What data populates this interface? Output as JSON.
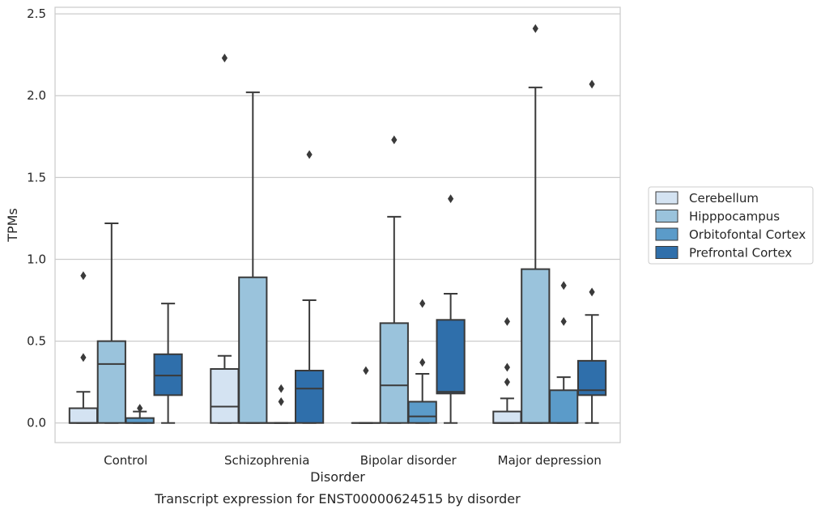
{
  "chart_data": {
    "type": "boxplot",
    "xlabel": "Disorder",
    "ylabel": "TPMs",
    "caption": "Transcript expression for ENST00000624515 by disorder",
    "ylim": [
      -0.12,
      2.54
    ],
    "yticks": [
      0.0,
      0.5,
      1.0,
      1.5,
      2.0,
      2.5
    ],
    "ytick_labels": [
      "0.0",
      "0.5",
      "1.0",
      "1.5",
      "2.0",
      "2.5"
    ],
    "grid": "horizontal",
    "legend_position": "right",
    "categories": [
      "Control",
      "Schizophrenia",
      "Bipolar disorder",
      "Major depression"
    ],
    "series": [
      {
        "name": "Cerebellum",
        "color": "#d4e3f2",
        "boxes": [
          {
            "q1": 0.0,
            "median": 0.0,
            "q3": 0.09,
            "whisker_low": 0.0,
            "whisker_high": 0.19,
            "outliers": [
              0.4,
              0.9
            ]
          },
          {
            "q1": 0.0,
            "median": 0.1,
            "q3": 0.33,
            "whisker_low": 0.0,
            "whisker_high": 0.41,
            "outliers": [
              2.23
            ]
          },
          {
            "q1": 0.0,
            "median": 0.0,
            "q3": 0.0,
            "whisker_low": 0.0,
            "whisker_high": 0.0,
            "outliers": [
              0.32
            ]
          },
          {
            "q1": 0.0,
            "median": 0.0,
            "q3": 0.07,
            "whisker_low": 0.0,
            "whisker_high": 0.15,
            "outliers": [
              0.25,
              0.34,
              0.62
            ]
          }
        ]
      },
      {
        "name": "Hipppocampus",
        "color": "#9ac3dc",
        "boxes": [
          {
            "q1": 0.0,
            "median": 0.36,
            "q3": 0.5,
            "whisker_low": 0.0,
            "whisker_high": 1.22,
            "outliers": []
          },
          {
            "q1": 0.0,
            "median": 0.0,
            "q3": 0.89,
            "whisker_low": 0.0,
            "whisker_high": 2.02,
            "outliers": []
          },
          {
            "q1": 0.0,
            "median": 0.23,
            "q3": 0.61,
            "whisker_low": 0.0,
            "whisker_high": 1.26,
            "outliers": [
              1.73
            ]
          },
          {
            "q1": 0.0,
            "median": 0.0,
            "q3": 0.94,
            "whisker_low": 0.0,
            "whisker_high": 2.05,
            "outliers": [
              2.41
            ]
          }
        ]
      },
      {
        "name": "Orbitofontal Cortex",
        "color": "#5b9bc9",
        "boxes": [
          {
            "q1": 0.0,
            "median": 0.0,
            "q3": 0.03,
            "whisker_low": 0.0,
            "whisker_high": 0.07,
            "outliers": [
              0.09
            ]
          },
          {
            "q1": 0.0,
            "median": 0.0,
            "q3": 0.0,
            "whisker_low": 0.0,
            "whisker_high": 0.0,
            "outliers": [
              0.13,
              0.21
            ]
          },
          {
            "q1": 0.0,
            "median": 0.04,
            "q3": 0.13,
            "whisker_low": 0.0,
            "whisker_high": 0.3,
            "outliers": [
              0.37,
              0.73
            ]
          },
          {
            "q1": 0.0,
            "median": 0.0,
            "q3": 0.2,
            "whisker_low": 0.0,
            "whisker_high": 0.28,
            "outliers": [
              0.62,
              0.84
            ]
          }
        ]
      },
      {
        "name": "Prefrontal Cortex",
        "color": "#2f6fab",
        "boxes": [
          {
            "q1": 0.17,
            "median": 0.29,
            "q3": 0.42,
            "whisker_low": 0.0,
            "whisker_high": 0.73,
            "outliers": []
          },
          {
            "q1": 0.0,
            "median": 0.21,
            "q3": 0.32,
            "whisker_low": 0.0,
            "whisker_high": 0.75,
            "outliers": [
              1.64
            ]
          },
          {
            "q1": 0.18,
            "median": 0.19,
            "q3": 0.63,
            "whisker_low": 0.0,
            "whisker_high": 0.79,
            "outliers": [
              1.37
            ]
          },
          {
            "q1": 0.17,
            "median": 0.2,
            "q3": 0.38,
            "whisker_low": 0.0,
            "whisker_high": 0.66,
            "outliers": [
              0.8,
              2.07
            ]
          }
        ]
      }
    ]
  }
}
